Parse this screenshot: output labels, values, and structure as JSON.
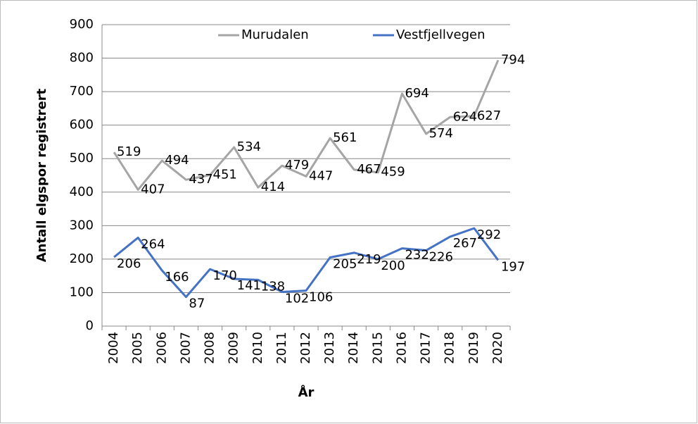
{
  "chart_data": {
    "type": "line",
    "x_label": "År",
    "y_label": "Antall elgspor registrert",
    "categories": [
      "2004",
      "2005",
      "2006",
      "2007",
      "2008",
      "2009",
      "2010",
      "2011",
      "2012",
      "2013",
      "2014",
      "2015",
      "2016",
      "2017",
      "2018",
      "2019",
      "2020"
    ],
    "series": [
      {
        "name": "Murudalen",
        "color": "#a5a5a5",
        "values": [
          519,
          407,
          494,
          437,
          451,
          534,
          414,
          479,
          447,
          561,
          467,
          459,
          694,
          574,
          624,
          627,
          794
        ]
      },
      {
        "name": "Vestfjellvegen",
        "color": "#4472c4",
        "values": [
          206,
          264,
          166,
          87,
          170,
          141,
          138,
          102,
          106,
          205,
          219,
          200,
          232,
          226,
          267,
          292,
          197
        ]
      }
    ],
    "ylim": [
      0,
      900
    ],
    "yticks": [
      0,
      100,
      200,
      300,
      400,
      500,
      600,
      700,
      800,
      900
    ],
    "grid": true,
    "legend": "top"
  }
}
